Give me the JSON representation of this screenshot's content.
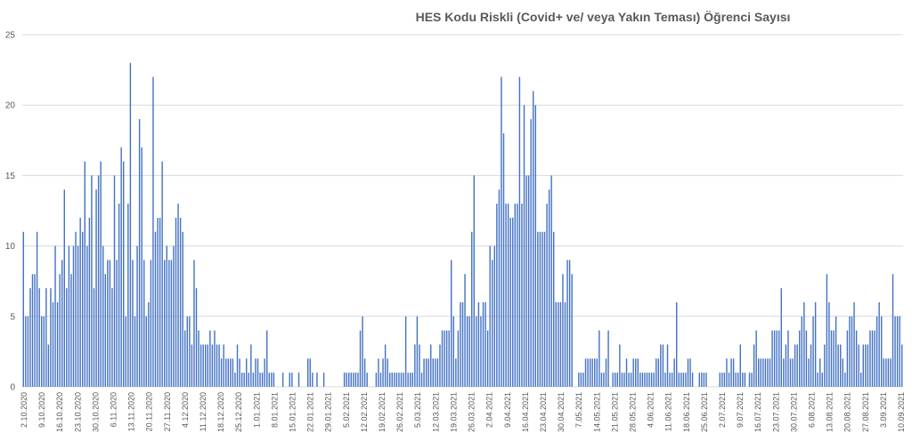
{
  "chart_data": {
    "type": "bar",
    "title": "HES Kodu Riskli (Covid+ ve/ veya Yakın Teması) Öğrenci Sayısı",
    "xlabel": "",
    "ylabel": "",
    "ylim": [
      0,
      25
    ],
    "yticks": [
      0,
      5,
      10,
      15,
      20,
      25
    ],
    "grid": true,
    "legend": "none",
    "bar_color": "#4472c4",
    "date_range": [
      "2.10.2020",
      "10.09.2021"
    ],
    "tick_labels": [
      "2.10.2020",
      "9.10.2020",
      "16.10.2020",
      "23.10.2020",
      "30.10.2020",
      "6.11.2020",
      "13.11.2020",
      "20.11.2020",
      "27.11.2020",
      "4.12.2020",
      "11.12.2020",
      "18.12.2020",
      "25.12.2020",
      "1.01.2021",
      "8.01.2021",
      "15.01.2021",
      "22.01.2021",
      "29.01.2021",
      "5.02.2021",
      "12.02.2021",
      "19.02.2021",
      "26.02.2021",
      "5.03.2021",
      "12.03.2021",
      "19.03.2021",
      "26.03.2021",
      "2.04.2021",
      "9.04.2021",
      "16.04.2021",
      "23.04.2021",
      "30.04.2021",
      "7.05.2021",
      "14.05.2021",
      "21.05.2021",
      "28.05.2021",
      "4.06.2021",
      "11.06.2021",
      "18.06.2021",
      "25.06.2021",
      "2.07.2021",
      "9.07.2021",
      "16.07.2021",
      "23.07.2021",
      "30.07.2021",
      "6.08.2021",
      "13.08.2021",
      "20.08.2021",
      "27.08.2021",
      "3.09.2021",
      "10.09.2021"
    ],
    "values": [
      11,
      5,
      5,
      7,
      8,
      8,
      11,
      7,
      5,
      5,
      7,
      3,
      7,
      6,
      10,
      6,
      8,
      9,
      14,
      7,
      10,
      8,
      10,
      11,
      10,
      12,
      11,
      16,
      10,
      12,
      15,
      7,
      14,
      15,
      16,
      10,
      8,
      9,
      9,
      7,
      15,
      9,
      13,
      17,
      16,
      5,
      13,
      23,
      9,
      5,
      10,
      19,
      17,
      9,
      5,
      6,
      9,
      22,
      11,
      12,
      12,
      16,
      9,
      10,
      9,
      9,
      10,
      12,
      13,
      12,
      11,
      4,
      5,
      5,
      3,
      9,
      7,
      4,
      3,
      3,
      3,
      3,
      4,
      3,
      4,
      3,
      3,
      2,
      3,
      2,
      2,
      2,
      2,
      1,
      3,
      2,
      1,
      1,
      2,
      1,
      3,
      1,
      2,
      2,
      1,
      1,
      2,
      4,
      1,
      1,
      1,
      0,
      0,
      0,
      1,
      0,
      0,
      1,
      1,
      0,
      0,
      1,
      0,
      0,
      0,
      2,
      2,
      1,
      0,
      1,
      0,
      0,
      1,
      0,
      0,
      0,
      0,
      0,
      0,
      0,
      0,
      1,
      1,
      1,
      1,
      1,
      1,
      1,
      4,
      5,
      2,
      1,
      0,
      0,
      0,
      1,
      2,
      1,
      2,
      3,
      2,
      1,
      1,
      1,
      1,
      1,
      1,
      1,
      5,
      1,
      1,
      1,
      3,
      5,
      3,
      1,
      2,
      2,
      2,
      3,
      2,
      2,
      2,
      3,
      4,
      4,
      4,
      4,
      9,
      5,
      2,
      4,
      6,
      6,
      8,
      5,
      5,
      11,
      15,
      5,
      6,
      5,
      6,
      6,
      4,
      10,
      9,
      10,
      13,
      14,
      22,
      18,
      13,
      13,
      12,
      12,
      13,
      13,
      22,
      13,
      20,
      15,
      15,
      19,
      21,
      20,
      11,
      11,
      11,
      11,
      13,
      14,
      15,
      11,
      6,
      6,
      6,
      8,
      6,
      9,
      9,
      8,
      0,
      0,
      1,
      1,
      1,
      2,
      2,
      2,
      2,
      2,
      2,
      4,
      1,
      1,
      2,
      4,
      0,
      1,
      1,
      1,
      3,
      1,
      1,
      2,
      1,
      1,
      2,
      2,
      2,
      1,
      1,
      1,
      1,
      1,
      1,
      1,
      2,
      2,
      3,
      3,
      1,
      3,
      1,
      1,
      2,
      6,
      1,
      1,
      1,
      1,
      2,
      2,
      1,
      0,
      0,
      1,
      1,
      1,
      1,
      0,
      0,
      0,
      0,
      0,
      1,
      1,
      1,
      2,
      1,
      2,
      2,
      1,
      1,
      3,
      1,
      1,
      0,
      1,
      1,
      3,
      4,
      2,
      2,
      2,
      2,
      2,
      2,
      4,
      4,
      4,
      4,
      7,
      2,
      3,
      4,
      2,
      2,
      3,
      3,
      4,
      5,
      6,
      4,
      2,
      3,
      5,
      6,
      1,
      2,
      1,
      3,
      8,
      6,
      4,
      4,
      5,
      3,
      3,
      2,
      1,
      4,
      5,
      5,
      6,
      4,
      3,
      1,
      3,
      3,
      3,
      4,
      4,
      4,
      5,
      6,
      5,
      2,
      2,
      2,
      2,
      8,
      5,
      5,
      5,
      3
    ]
  }
}
